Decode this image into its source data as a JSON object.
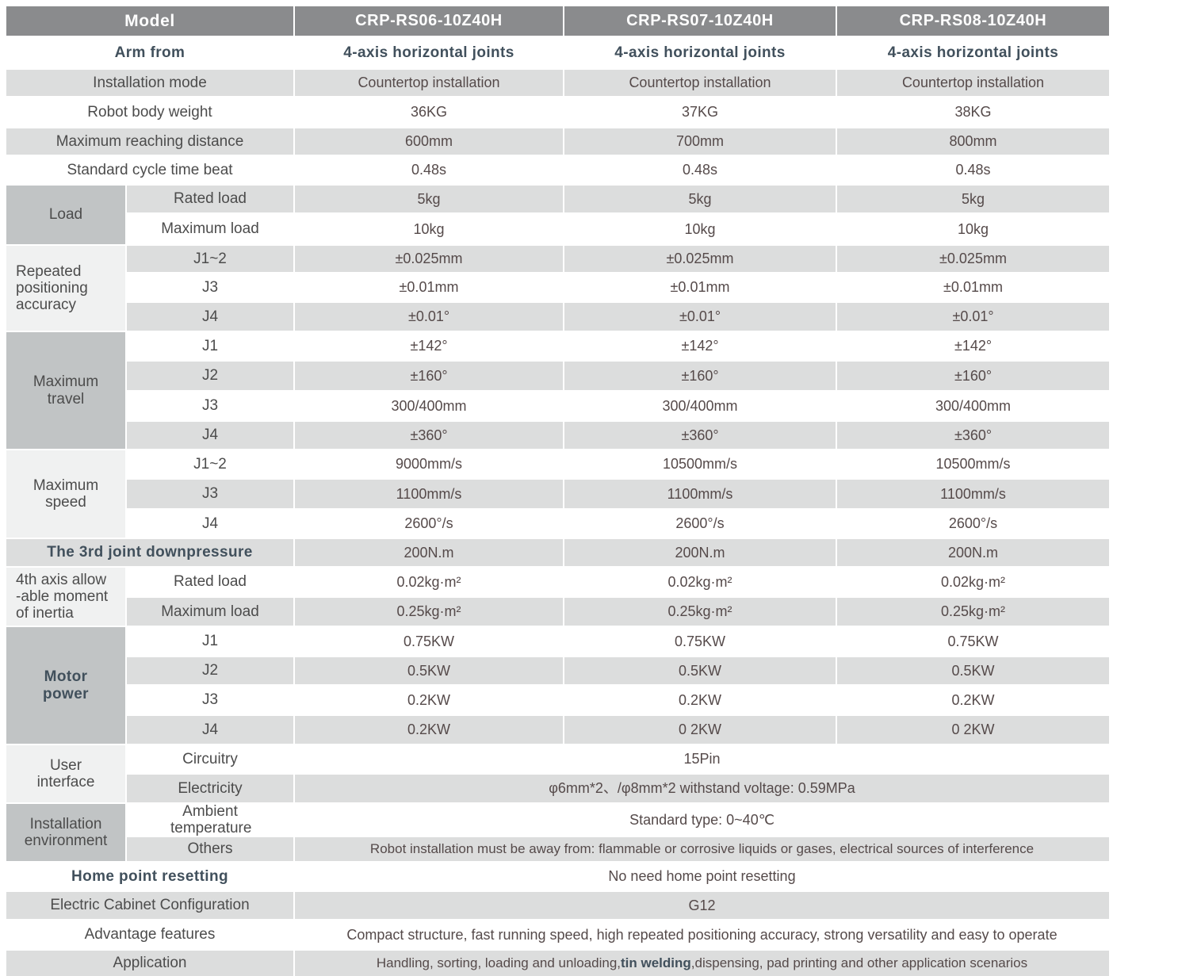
{
  "table": {
    "header": {
      "label": "Model",
      "models": [
        "CRP-RS06-10Z40H",
        "CRP-RS07-10Z40H",
        "CRP-RS08-10Z40H"
      ]
    },
    "rows": {
      "arm_from": {
        "label": "Arm from",
        "values": [
          "4-axis horizontal joints",
          "4-axis horizontal joints",
          "4-axis horizontal joints"
        ]
      },
      "installation_mode": {
        "label": "Installation mode",
        "values": [
          "Countertop installation",
          "Countertop installation",
          "Countertop installation"
        ]
      },
      "robot_body_weight": {
        "label": "Robot body weight",
        "values": [
          "36KG",
          "37KG",
          "38KG"
        ]
      },
      "max_reaching_distance": {
        "label": "Maximum reaching distance",
        "values": [
          "600mm",
          "700mm",
          "800mm"
        ]
      },
      "standard_cycle_time": {
        "label": "Standard cycle time beat",
        "values": [
          "0.48s",
          "0.48s",
          "0.48s"
        ]
      },
      "third_joint_downpressure": {
        "label": "The 3rd joint downpressure",
        "values": [
          "200N.m",
          "200N.m",
          "200N.m"
        ]
      },
      "home_point_resetting": {
        "label": "Home point resetting",
        "value": "No need home point resetting"
      },
      "electric_cabinet": {
        "label": "Electric Cabinet Configuration",
        "value": "G12"
      },
      "advantage_features": {
        "label": "Advantage features",
        "value": "Compact structure, fast running speed, high repeated positioning accuracy, strong versatility and easy to operate"
      },
      "application": {
        "label": "Application",
        "value_pre": "Handling, sorting, loading and unloading, ",
        "value_bold": "tin welding",
        "value_post": ",dispensing, pad printing and other application scenarios"
      }
    },
    "groups": {
      "load": {
        "label": "Load",
        "rows": [
          {
            "label": "Rated load",
            "values": [
              "5kg",
              "5kg",
              "5kg"
            ]
          },
          {
            "label": "Maximum load",
            "values": [
              "10kg",
              "10kg",
              "10kg"
            ]
          }
        ]
      },
      "repeated_accuracy": {
        "label": "Repeated positioning accuracy",
        "rows": [
          {
            "label": "J1~2",
            "values": [
              "±0.025mm",
              "±0.025mm",
              "±0.025mm"
            ]
          },
          {
            "label": "J3",
            "values": [
              "±0.01mm",
              "±0.01mm",
              "±0.01mm"
            ]
          },
          {
            "label": "J4",
            "values": [
              "±0.01°",
              "±0.01°",
              "±0.01°"
            ]
          }
        ]
      },
      "maximum_travel": {
        "label": "Maximum travel",
        "rows": [
          {
            "label": "J1",
            "values": [
              "±142°",
              "±142°",
              "±142°"
            ]
          },
          {
            "label": "J2",
            "values": [
              "±160°",
              "±160°",
              "±160°"
            ]
          },
          {
            "label": "J3",
            "values": [
              "300/400mm",
              "300/400mm",
              "300/400mm"
            ]
          },
          {
            "label": "J4",
            "values": [
              "±360°",
              "±360°",
              "±360°"
            ]
          }
        ]
      },
      "maximum_speed": {
        "label": "Maximum speed",
        "rows": [
          {
            "label": "J1~2",
            "values": [
              "9000mm/s",
              "10500mm/s",
              "10500mm/s"
            ]
          },
          {
            "label": "J3",
            "values": [
              "1100mm/s",
              "1100mm/s",
              "1100mm/s"
            ]
          },
          {
            "label": "J4",
            "values": [
              "2600°/s",
              "2600°/s",
              "2600°/s"
            ]
          }
        ]
      },
      "fourth_axis_inertia": {
        "label_lines": [
          "4th axis allow",
          "-able moment",
          "of inertia"
        ],
        "rows": [
          {
            "label": "Rated load",
            "values": [
              "0.02kg·m²",
              "0.02kg·m²",
              "0.02kg·m²"
            ]
          },
          {
            "label": "Maximum load",
            "values": [
              "0.25kg·m²",
              "0.25kg·m²",
              "0.25kg·m²"
            ]
          }
        ]
      },
      "motor_power": {
        "label": "Motor power",
        "rows": [
          {
            "label": "J1",
            "values": [
              "0.75KW",
              "0.75KW",
              "0.75KW"
            ]
          },
          {
            "label": "J2",
            "values": [
              "0.5KW",
              "0.5KW",
              "0.5KW"
            ]
          },
          {
            "label": "J3",
            "values": [
              "0.2KW",
              "0.2KW",
              "0.2KW"
            ]
          },
          {
            "label": "J4",
            "values": [
              "0.2KW",
              "0 2KW",
              "0 2KW"
            ]
          }
        ]
      },
      "user_interface": {
        "label": "User interface",
        "rows": [
          {
            "label": "Circuitry",
            "value": "15Pin"
          },
          {
            "label": "Electricity",
            "value": "φ6mm*2、/φ8mm*2  withstand voltage: 0.59MPa"
          }
        ]
      },
      "installation_environment": {
        "label": "Installation environment",
        "rows": [
          {
            "label": "Ambient temperature",
            "value": "Standard type:  0~40℃"
          },
          {
            "label": "Others",
            "value": "Robot installation must be away from: flammable or corrosive liquids or gases, electrical sources of interference"
          }
        ]
      }
    }
  }
}
